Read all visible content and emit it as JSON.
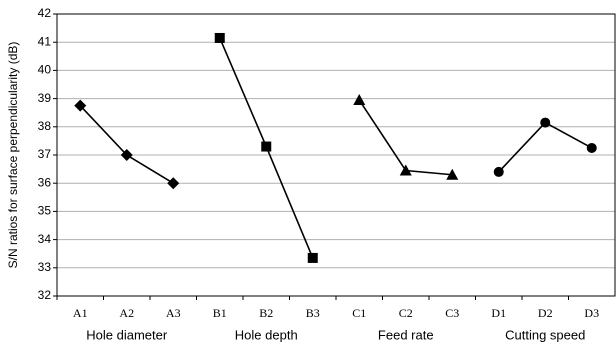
{
  "chart_data": {
    "type": "line",
    "y_label": "S/N ratios for surface perpendicularity (dB)",
    "categories": [
      "A1",
      "A2",
      "A3",
      "B1",
      "B2",
      "B3",
      "C1",
      "C2",
      "C3",
      "D1",
      "D2",
      "D3"
    ],
    "series": [
      {
        "name": "Hole diameter",
        "color": "#000000",
        "marker": "diamond",
        "values": [
          38.75,
          37.0,
          36.0,
          null,
          null,
          null,
          null,
          null,
          null,
          null,
          null,
          null
        ]
      },
      {
        "name": "Hole depth",
        "color": "#000000",
        "marker": "square",
        "values": [
          null,
          null,
          null,
          41.15,
          37.3,
          33.35,
          null,
          null,
          null,
          null,
          null,
          null
        ]
      },
      {
        "name": "Feed rate",
        "color": "#000000",
        "marker": "triangle",
        "values": [
          null,
          null,
          null,
          null,
          null,
          null,
          38.95,
          36.45,
          36.3,
          null,
          null,
          null
        ]
      },
      {
        "name": "Cutting speed",
        "color": "#000000",
        "marker": "circle",
        "values": [
          null,
          null,
          null,
          null,
          null,
          null,
          null,
          null,
          null,
          36.4,
          38.15,
          37.25
        ]
      }
    ],
    "ylim": [
      32,
      42
    ],
    "yticks": [
      32,
      33,
      34,
      35,
      36,
      37,
      38,
      39,
      40,
      41,
      42
    ],
    "grid": true
  }
}
